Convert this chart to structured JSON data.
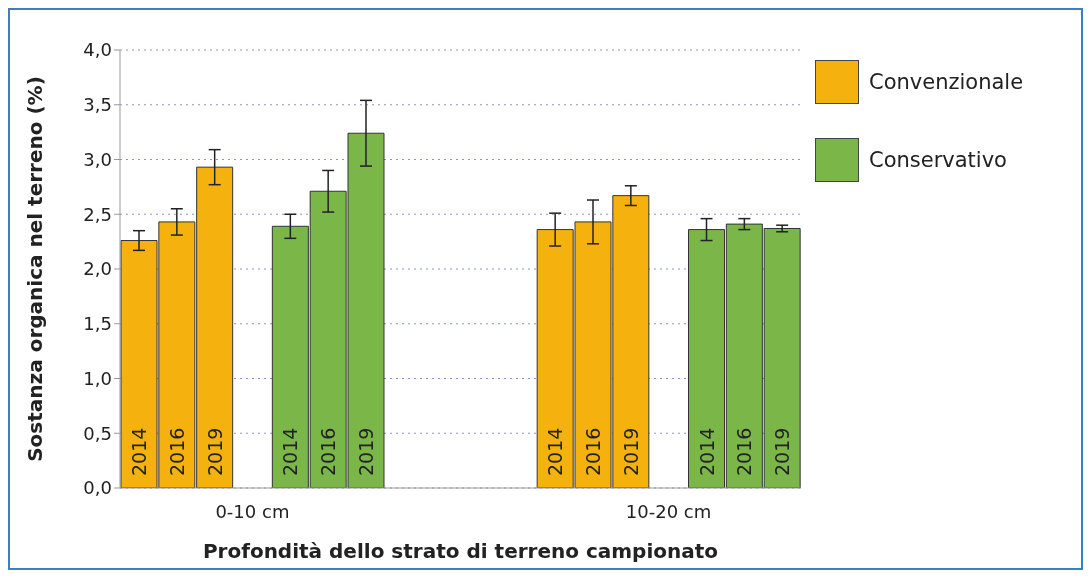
{
  "chart_data": {
    "type": "bar",
    "ylabel": "Sostanza organica nel terreno (%)",
    "xlabel": "Profondità dello strato di terreno campionato",
    "categories": [
      "2014",
      "2016",
      "2019",
      null,
      "2014",
      "2016",
      "2019",
      null,
      null,
      null,
      null,
      "2014",
      "2016",
      "2019",
      null,
      "2014",
      "2016",
      "2019"
    ],
    "series": [
      {
        "name": "Convenzionale",
        "color": "#f5b20f",
        "values": [
          2.26,
          2.43,
          2.93,
          null,
          null,
          null,
          null,
          null,
          null,
          null,
          null,
          2.36,
          2.43,
          2.67,
          null,
          null,
          null,
          null
        ],
        "errors": [
          0.09,
          0.12,
          0.16,
          null,
          null,
          null,
          null,
          null,
          null,
          null,
          null,
          0.15,
          0.2,
          0.09,
          null,
          null,
          null,
          null
        ]
      },
      {
        "name": "Conservativo",
        "color": "#7ab648",
        "values": [
          null,
          null,
          null,
          null,
          2.39,
          2.71,
          3.24,
          null,
          null,
          null,
          null,
          null,
          null,
          null,
          null,
          2.36,
          2.41,
          2.37
        ],
        "errors": [
          null,
          null,
          null,
          null,
          0.11,
          0.19,
          0.3,
          null,
          null,
          null,
          null,
          null,
          null,
          null,
          null,
          0.1,
          0.05,
          0.03
        ]
      }
    ],
    "annotations": [
      "0-10 cm",
      "10-20 cm"
    ],
    "ylim": [
      0,
      4
    ],
    "yticks": [
      {
        "value": 0,
        "label": "0,0"
      },
      {
        "value": 0.5,
        "label": "0,5"
      },
      {
        "value": 1,
        "label": "1,0"
      },
      {
        "value": 1.5,
        "label": "1,5"
      },
      {
        "value": 2,
        "label": "2,0"
      },
      {
        "value": 2.5,
        "label": "2,5"
      },
      {
        "value": 3,
        "label": "3,0"
      },
      {
        "value": 3.5,
        "label": "3,5"
      },
      {
        "value": 4,
        "label": "4,0"
      }
    ],
    "grid": "y",
    "legend": "right"
  }
}
